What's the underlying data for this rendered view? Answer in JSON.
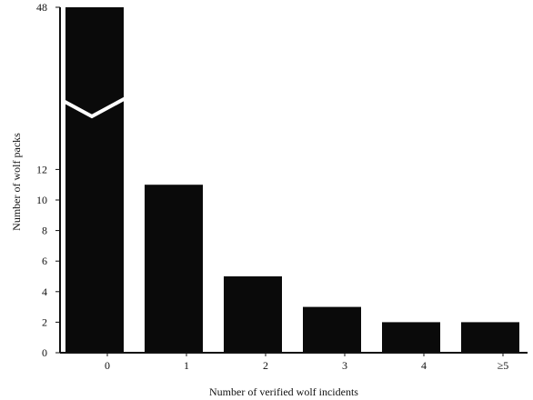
{
  "chart_data": {
    "type": "bar",
    "title": "",
    "xlabel": "Number of verified wolf incidents",
    "ylabel": "Number of wolf packs",
    "categories": [
      "0",
      "1",
      "2",
      "3",
      "4",
      "≥5"
    ],
    "values": [
      48,
      11,
      5,
      3,
      2,
      2
    ],
    "yticks": [
      0,
      2,
      4,
      6,
      8,
      10,
      12,
      48
    ],
    "y_axis_break": true,
    "grid": false,
    "legend": "none",
    "bar_color": "#0a0a0a"
  }
}
